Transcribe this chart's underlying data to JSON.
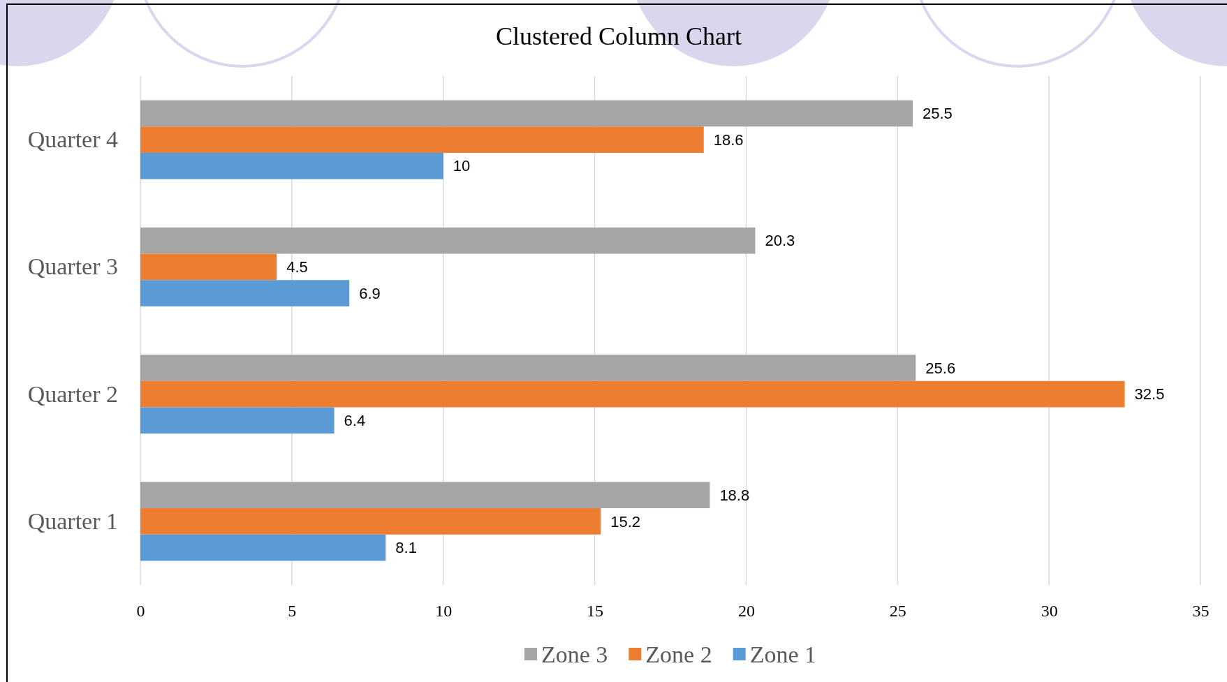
{
  "chart_data": {
    "type": "bar",
    "orientation": "horizontal",
    "title": "Clustered Column Chart",
    "categories": [
      "Quarter 4",
      "Quarter 3",
      "Quarter 2",
      "Quarter 1"
    ],
    "series": [
      {
        "name": "Zone 3",
        "color": "#a5a5a5",
        "values": [
          25.5,
          20.3,
          25.6,
          18.8
        ]
      },
      {
        "name": "Zone 2",
        "color": "#ed7d31",
        "values": [
          18.6,
          4.5,
          32.5,
          15.2
        ]
      },
      {
        "name": "Zone 1",
        "color": "#5b9bd5",
        "values": [
          10,
          6.9,
          6.4,
          8.1
        ]
      }
    ],
    "xlim": [
      0,
      35
    ],
    "xticks": [
      0,
      5,
      10,
      15,
      20,
      25,
      30,
      35
    ],
    "grid": "x",
    "legend": "bottom",
    "data_labels": true
  }
}
